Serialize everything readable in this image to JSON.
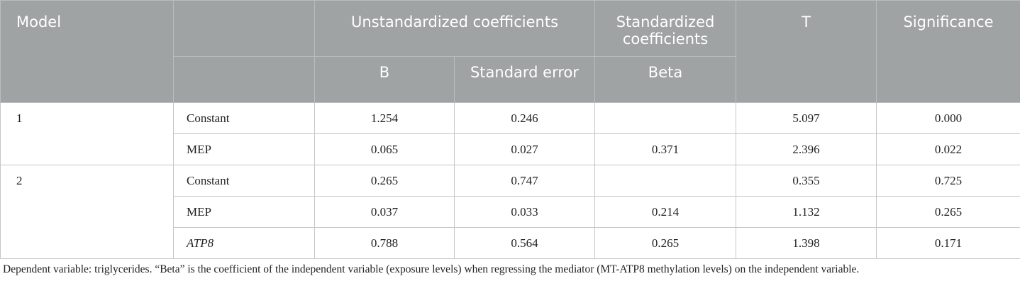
{
  "table": {
    "header": {
      "model": "Model",
      "unstandardized": "Unstandardized coefficients",
      "standardized": "Standardized coefficients",
      "t": "T",
      "significance": "Significance",
      "b": "B",
      "standard_error": "Standard error",
      "beta": "Beta"
    },
    "groups": [
      {
        "model": "1",
        "rows": [
          {
            "name": "Constant",
            "b": "1.254",
            "se": "0.246",
            "beta": null,
            "t": "5.097",
            "sig": "0.000"
          },
          {
            "name": "MEP",
            "b": "0.065",
            "se": "0.027",
            "beta": "0.371",
            "t": "2.396",
            "sig": "0.022"
          }
        ]
      },
      {
        "model": "2",
        "rows": [
          {
            "name": "Constant",
            "b": "0.265",
            "se": "0.747",
            "beta": null,
            "t": "0.355",
            "sig": "0.725"
          },
          {
            "name": "MEP",
            "b": "0.037",
            "se": "0.033",
            "beta": "0.214",
            "t": "1.132",
            "sig": "0.265"
          },
          {
            "name": "ATP8",
            "italic": true,
            "b": "0.788",
            "se": "0.564",
            "beta": "0.265",
            "t": "1.398",
            "sig": "0.171"
          }
        ]
      }
    ]
  },
  "footnote": "Dependent variable: triglycerides. “Beta” is the coefficient of the independent variable (exposure levels) when regressing the mediator (MT-ATP8 methylation levels) on the independent variable."
}
